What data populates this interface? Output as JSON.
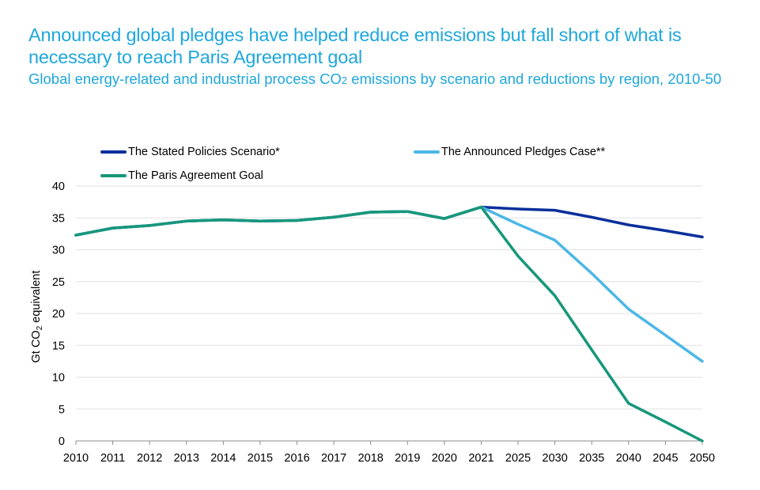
{
  "header": {
    "title": "Announced global pledges have helped reduce emissions but fall short of what is necessary to reach Paris Agreement goal",
    "subtitle_part1": "Global energy-related and industrial process CO",
    "subtitle_sub": "2",
    "subtitle_part2": " emissions by scenario and reductions by region, 2010-50"
  },
  "chart_data": {
    "type": "line",
    "title": "Announced global pledges have helped reduce emissions but fall short of what is necessary to reach Paris Agreement goal",
    "subtitle": "Global energy-related and industrial process CO2 emissions by scenario and reductions by region, 2010-50",
    "xlabel": "",
    "ylabel": "Gt CO2 equivalent",
    "ylabel_main": "Gt CO",
    "ylabel_sub": "2",
    "ylabel_rest": " equivalent",
    "ylim": [
      0,
      40
    ],
    "yticks": [
      0,
      5,
      10,
      15,
      20,
      25,
      30,
      35,
      40
    ],
    "grid": true,
    "legend_position": "top",
    "categories": [
      "2010",
      "2011",
      "2012",
      "2013",
      "2014",
      "2015",
      "2016",
      "2017",
      "2018",
      "2019",
      "2020",
      "2021",
      "2025",
      "2030",
      "2035",
      "2040",
      "2045",
      "2050"
    ],
    "series": [
      {
        "name": "The Stated Policies Scenario*",
        "color": "#0a2f9c",
        "values": [
          32.3,
          33.4,
          33.8,
          34.5,
          34.7,
          34.5,
          34.6,
          35.1,
          35.9,
          36.0,
          34.9,
          36.7,
          36.4,
          36.2,
          35.1,
          33.9,
          33.0,
          32.0
        ]
      },
      {
        "name": "The Announced Pledges Case**",
        "color": "#4cb7e6",
        "values": [
          32.3,
          33.4,
          33.8,
          34.5,
          34.7,
          34.5,
          34.6,
          35.1,
          35.9,
          36.0,
          34.9,
          36.7,
          34.0,
          31.5,
          26.3,
          20.7,
          16.6,
          12.5
        ]
      },
      {
        "name": "The Paris Agreement Goal",
        "color": "#17977a",
        "values": [
          32.3,
          33.4,
          33.8,
          34.5,
          34.7,
          34.5,
          34.6,
          35.1,
          35.9,
          36.0,
          34.9,
          36.7,
          29.0,
          22.8,
          14.3,
          5.9,
          3.0,
          0.0
        ]
      }
    ]
  }
}
